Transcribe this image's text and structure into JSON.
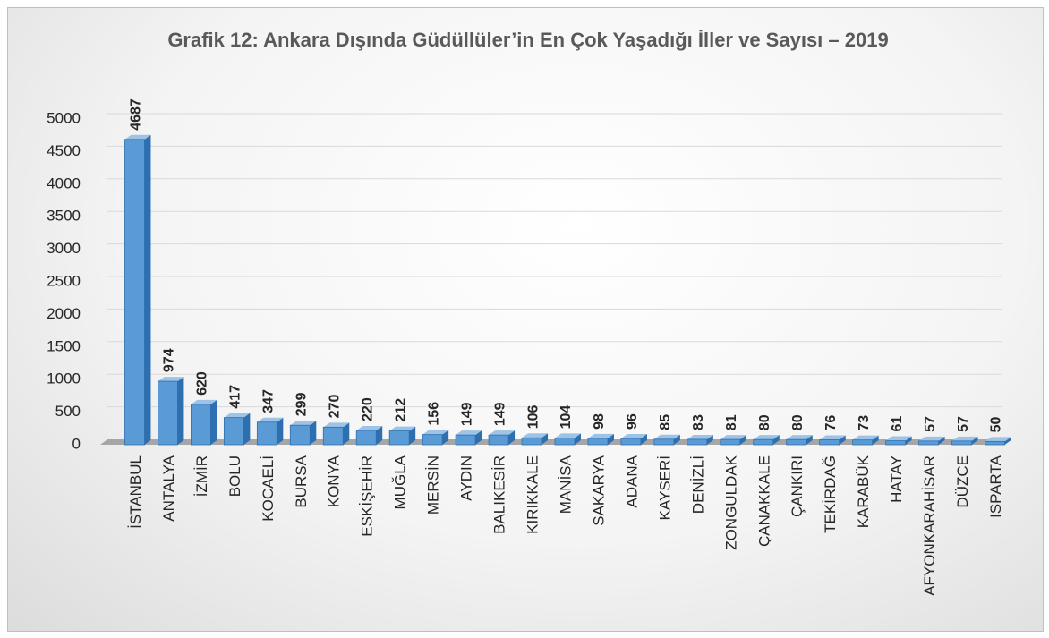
{
  "chart_data": {
    "type": "bar",
    "title": "Grafik 12: Ankara Dışında Güdüllüler’in En Çok Yaşadığı İller ve Sayısı – 2019",
    "categories": [
      "İSTANBUL",
      "ANTALYA",
      "İZMİR",
      "BOLU",
      "KOCAELİ",
      "BURSA",
      "KONYA",
      "ESKİŞEHİR",
      "MUĞLA",
      "MERSİN",
      "AYDIN",
      "BALIKESİR",
      "KIRIKKALE",
      "MANİSA",
      "SAKARYA",
      "ADANA",
      "KAYSERİ",
      "DENİZLİ",
      "ZONGULDAK",
      "ÇANAKKALE",
      "ÇANKIRI",
      "TEKİRDAĞ",
      "KARABÜK",
      "HATAY",
      "AFYONKARAHİSAR",
      "DÜZCE",
      "ISPARTA"
    ],
    "values": [
      4687,
      974,
      620,
      417,
      347,
      299,
      270,
      220,
      212,
      156,
      149,
      149,
      106,
      104,
      98,
      96,
      85,
      83,
      81,
      80,
      80,
      76,
      73,
      61,
      57,
      57,
      50
    ],
    "color": "#5b9bd5",
    "ylim": [
      0,
      5000
    ],
    "yticks": [
      0,
      500,
      1000,
      1500,
      2000,
      2500,
      3000,
      3500,
      4000,
      4500,
      5000
    ],
    "grid": true
  }
}
